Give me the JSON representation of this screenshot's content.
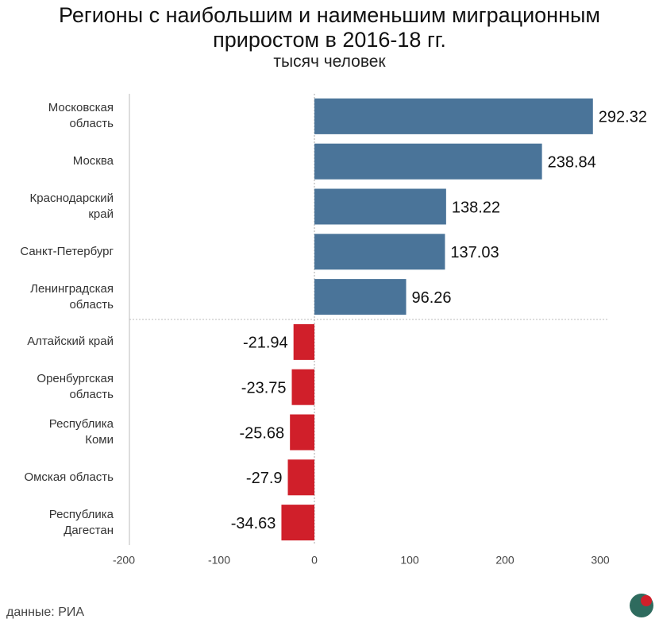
{
  "chart_data": {
    "type": "barh",
    "title": "Регионы с наибольшим и наименьшим миграционным\nприростом в 2016-18 гг.",
    "subtitle": "тысяч человек",
    "categories": [
      "Московская\nобласть",
      "Москва",
      "Краснодарский\nкрай",
      "Санкт-Петербург",
      "Ленинградская\nобласть",
      "Алтайский край",
      "Оренбургская\nобласть",
      "Республика\nКоми",
      "Омская область",
      "Республика\nДагестан"
    ],
    "values": [
      292.32,
      238.84,
      138.22,
      137.03,
      96.26,
      -21.94,
      -23.75,
      -25.68,
      -27.9,
      -34.63
    ],
    "positive_color": "#4a7499",
    "negative_color": "#d01f2a",
    "xlim": [
      -200,
      300
    ],
    "xticks": [
      -200,
      -100,
      0,
      100,
      200,
      300
    ],
    "source": "данные: РИА"
  }
}
